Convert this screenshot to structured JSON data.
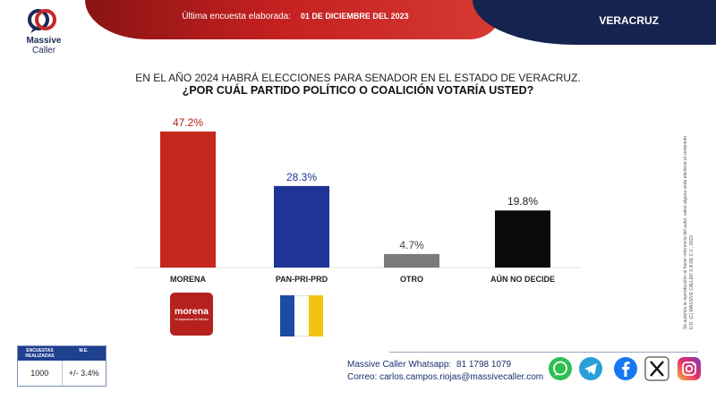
{
  "header": {
    "survey_label": "Última encuesta elaborada:",
    "survey_date": "01 DE DICIEMBRE DEL 2023",
    "state": "VERACRUZ"
  },
  "brand": {
    "name_line1": "Massive",
    "name_line2": "Caller"
  },
  "title": {
    "line1": "EN EL AÑO 2024 HABRÁ ELECCIONES PARA SENADOR EN EL ESTADO DE VERACRUZ.",
    "line2": "¿POR CUÁL PARTIDO POLÍTICO O COALICIÓN  VOTARÍA USTED?"
  },
  "chart_data": {
    "type": "bar",
    "categories": [
      "MORENA",
      "PAN-PRI-PRD",
      "OTRO",
      "AÚN NO DECIDE"
    ],
    "values": [
      47.2,
      28.3,
      4.7,
      19.8
    ],
    "value_labels": [
      "47.2%",
      "28.3%",
      "4.7%",
      "19.8%"
    ],
    "colors": [
      "#c4271d",
      "#1f3595",
      "#7a7a7a",
      "#0a0a0a"
    ],
    "label_colors": [
      "#b4221c",
      "#1f3595",
      "#444444",
      "#222222"
    ],
    "unit": "%",
    "title": "",
    "xlabel": "",
    "ylabel": "",
    "ylim": [
      0,
      50
    ],
    "grid": false,
    "legend": "none"
  },
  "party_logos": {
    "morena_word": "morena",
    "morena_sub": "La esperanza de México"
  },
  "side_notes": {
    "line1": "Se autoriza la reproducción al hacer referencia del autor, salvo alguna veda electoral al contenido.",
    "line2": "D.R. (C) MASSIVE CALLER S.A DE C.V., 2023"
  },
  "footer": {
    "whatsapp_label": "Massive Caller Whatsapp:",
    "whatsapp_number": "81 1798 1079",
    "email": "Correo: carlos.campos.riojas@massivecaller.com",
    "social_icons": [
      "whatsapp-icon",
      "telegram-icon",
      "facebook-icon",
      "x-icon",
      "instagram-icon"
    ]
  },
  "stats_table": {
    "headers": [
      "ENCUESTAS REALIZADAS",
      "M.E."
    ],
    "values": [
      "1000",
      "+/- 3.4%"
    ]
  }
}
